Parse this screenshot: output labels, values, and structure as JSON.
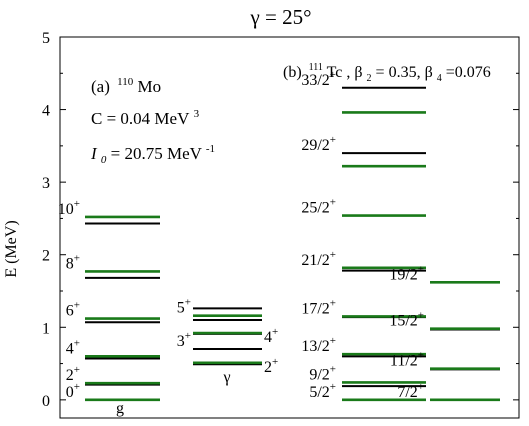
{
  "chart_data": {
    "type": "level_scheme",
    "title": "γ = 25°",
    "ylabel": "E (MeV)",
    "ylim": [
      -0.25,
      5.0
    ],
    "yticks": [
      "0",
      "1",
      "2",
      "3",
      "4",
      "5"
    ],
    "panel_a": {
      "label": "(a)",
      "nucleus_mass": "110",
      "nucleus": "Mo",
      "param_C": "C = 0.04 MeV",
      "param_C_exp": "3",
      "param_I0": "I",
      "param_I0_sub": "0",
      "param_I0_rest": " = 20.75 MeV",
      "param_I0_exp": "-1"
    },
    "panel_b": {
      "label": "(b)",
      "nucleus_mass": "111",
      "nucleus": "Tc",
      "deformation": ", β",
      "beta2_sub": "2",
      "beta2_eq": " = 0.35, β",
      "beta4_sub": "4",
      "beta4_eq": "=0.076"
    },
    "colors": {
      "experiment": "#000000",
      "theory": "#1a7a1a"
    },
    "bands": [
      {
        "name": "g",
        "levels": [
          {
            "spin": "0",
            "parity": "+",
            "exp": 0.0,
            "th": 0.0
          },
          {
            "spin": "2",
            "parity": "+",
            "exp": 0.21,
            "th": 0.23
          },
          {
            "spin": "4",
            "parity": "+",
            "exp": 0.57,
            "th": 0.6
          },
          {
            "spin": "6",
            "parity": "+",
            "exp": 1.07,
            "th": 1.12
          },
          {
            "spin": "8",
            "parity": "+",
            "exp": 1.68,
            "th": 1.77
          },
          {
            "spin": "10",
            "parity": "+",
            "exp": 2.43,
            "th": 2.52
          }
        ]
      },
      {
        "name": "γ",
        "levels": [
          {
            "spin": "2",
            "parity": "+",
            "exp": 0.49,
            "th": 0.51
          },
          {
            "spin": "3",
            "parity": "+",
            "exp": 0.7,
            "th": null
          },
          {
            "spin": "4",
            "parity": "+",
            "exp": 0.91,
            "th": 0.92
          },
          {
            "spin": "5",
            "parity": "+",
            "exp": 1.1,
            "th": 1.16
          },
          {
            "spin": "",
            "parity": "",
            "exp": 1.26,
            "th": null
          }
        ]
      },
      {
        "name": "",
        "levels": [
          {
            "spin": "5/2",
            "parity": "+",
            "exp": 0.0,
            "th": 0.0
          },
          {
            "spin": "9/2",
            "parity": "+",
            "exp": 0.19,
            "th": 0.24
          },
          {
            "spin": "13/2",
            "parity": "+",
            "exp": 0.6,
            "th": 0.63
          },
          {
            "spin": "17/2",
            "parity": "+",
            "exp": 1.14,
            "th": 1.15
          },
          {
            "spin": "21/2",
            "parity": "+",
            "exp": 1.78,
            "th": 1.82
          },
          {
            "spin": "25/2",
            "parity": "+",
            "exp": 2.54,
            "th": 2.54
          },
          {
            "spin": "29/2",
            "parity": "+",
            "exp": 3.4,
            "th": 3.22
          },
          {
            "spin": "33/2",
            "parity": "+",
            "exp": 4.3,
            "th": 3.96
          }
        ]
      },
      {
        "name": "",
        "levels": [
          {
            "spin": "7/2",
            "parity": "+",
            "exp": 0.0,
            "th": 0.0
          },
          {
            "spin": "11/2",
            "parity": "+",
            "exp": 0.42,
            "th": 0.43
          },
          {
            "spin": "15/2",
            "parity": "+",
            "exp": 0.97,
            "th": 0.98
          },
          {
            "spin": "19/2",
            "parity": "+",
            "exp": 1.62,
            "th": 1.62
          }
        ]
      }
    ]
  }
}
